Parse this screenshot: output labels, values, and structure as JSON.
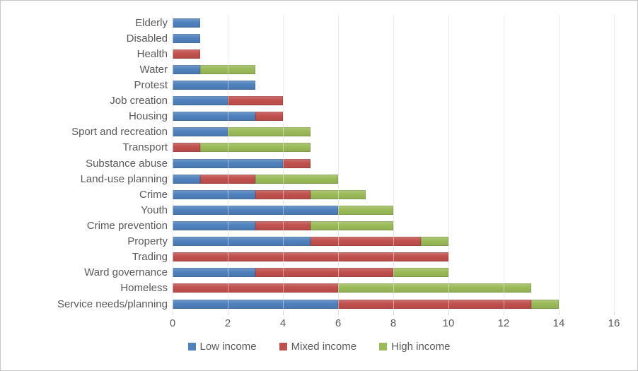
{
  "chart_data": {
    "type": "bar",
    "orientation": "horizontal",
    "stacked": true,
    "title": "",
    "xlabel": "",
    "ylabel": "",
    "categories": [
      "Elderly",
      "Disabled",
      "Health",
      "Water",
      "Protest",
      "Job creation",
      "Housing",
      "Sport and recreation",
      "Transport",
      "Substance abuse",
      "Land-use planning",
      "Crime",
      "Youth",
      "Crime prevention",
      "Property",
      "Trading",
      "Ward governance",
      "Homeless",
      "Service needs/planning"
    ],
    "series": [
      {
        "name": "Low income",
        "color": "#4F81BD",
        "values": [
          1,
          1,
          0,
          1,
          3,
          2,
          3,
          2,
          0,
          4,
          1,
          3,
          6,
          3,
          5,
          0,
          3,
          0,
          6
        ]
      },
      {
        "name": "Mixed income",
        "color": "#C0504D",
        "values": [
          0,
          0,
          1,
          0,
          0,
          2,
          1,
          0,
          1,
          1,
          2,
          2,
          0,
          2,
          4,
          10,
          5,
          6,
          7
        ]
      },
      {
        "name": "High income",
        "color": "#9BBB59",
        "values": [
          0,
          0,
          0,
          2,
          0,
          0,
          0,
          3,
          4,
          0,
          3,
          2,
          2,
          3,
          1,
          0,
          2,
          7,
          1
        ]
      }
    ],
    "xlim": [
      0,
      16
    ],
    "x_ticks": [
      0,
      2,
      4,
      6,
      8,
      10,
      12,
      14,
      16
    ],
    "grid": true,
    "gridline_color": "#d9d9d9",
    "text_color": "#595959",
    "background_color": "#ffffff",
    "legend_position": "bottom"
  }
}
